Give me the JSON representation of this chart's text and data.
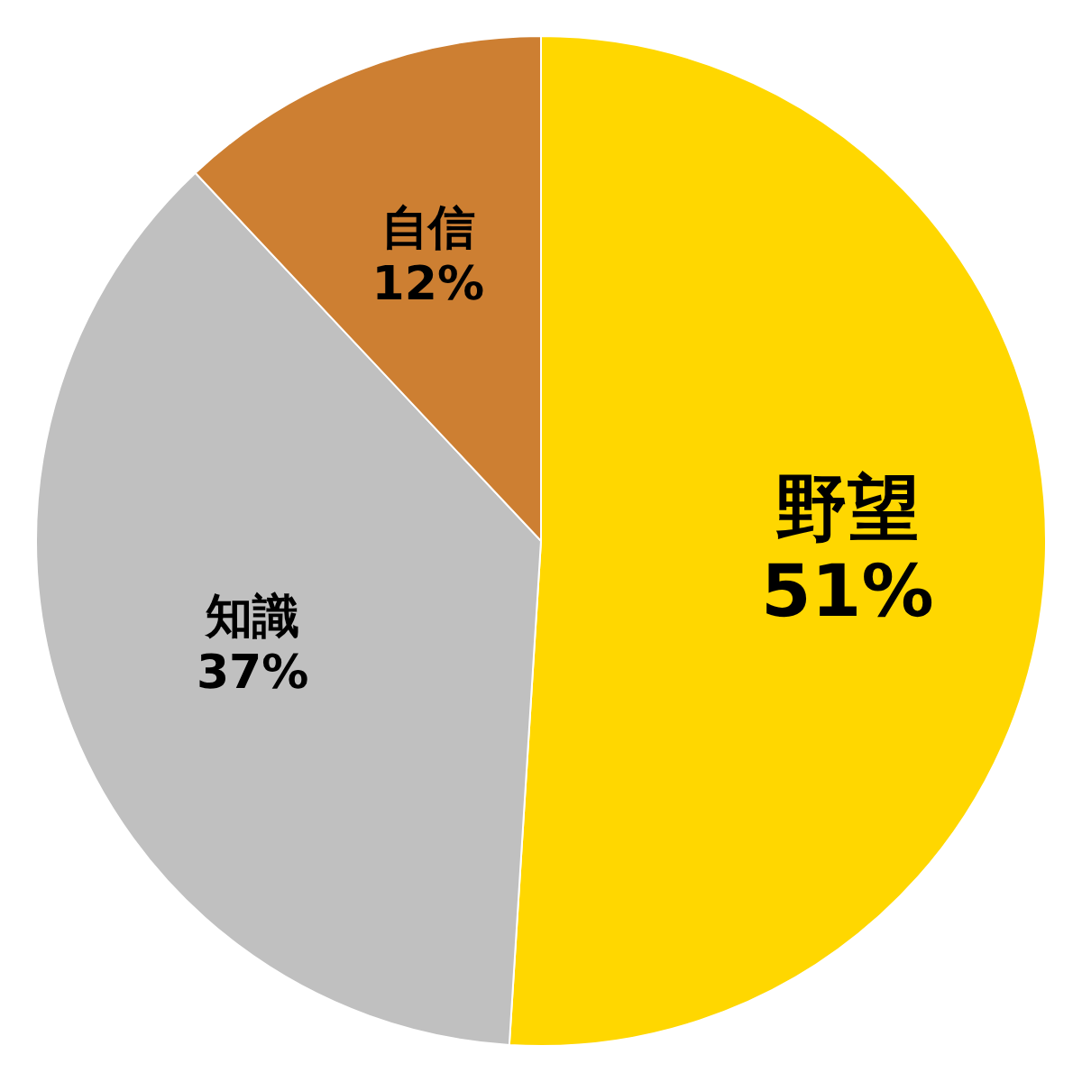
{
  "chart_data": {
    "type": "pie",
    "categories": [
      "野望",
      "知識",
      "自信"
    ],
    "values": [
      51,
      37,
      12
    ],
    "colors": [
      "#ffd700",
      "#c0c0c0",
      "#cd7f32"
    ],
    "value_labels": [
      "51%",
      "37%",
      "12%"
    ],
    "legend": false
  }
}
